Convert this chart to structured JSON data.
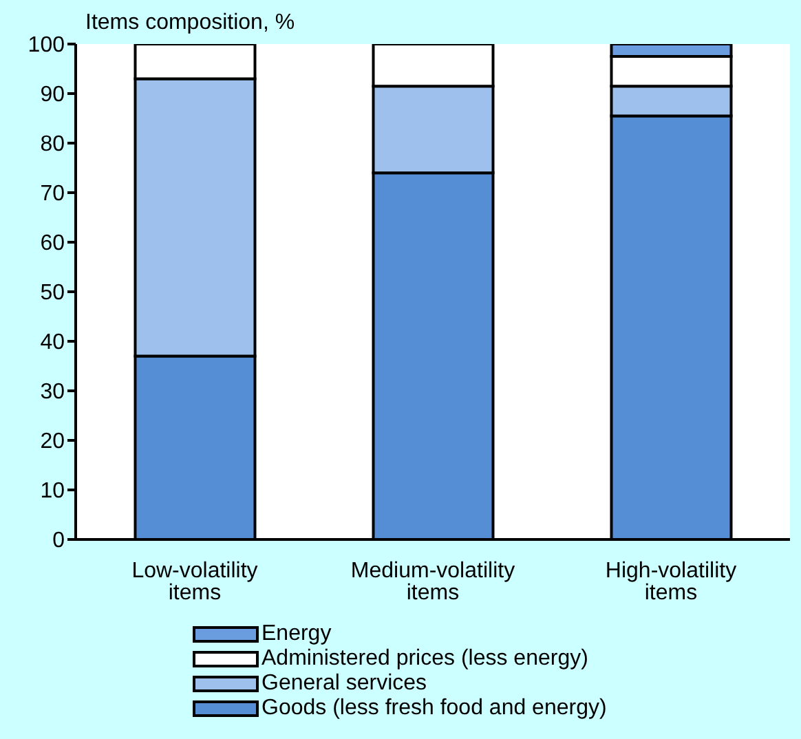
{
  "chart_data": {
    "type": "bar",
    "stacked": true,
    "ylabel": "Items composition, %",
    "categories": [
      "Low-volatility items",
      "Medium-volatility items",
      "High-volatility items"
    ],
    "series": [
      {
        "name": "Goods (less fresh food and energy)",
        "color": "#558ed5",
        "values": [
          37,
          74,
          85.5
        ]
      },
      {
        "name": "General services",
        "color": "#9dc0ec",
        "values": [
          56,
          17.5,
          6
        ]
      },
      {
        "name": "Administered prices (less energy)",
        "color": "#ffffff",
        "values": [
          7,
          8.5,
          6
        ]
      },
      {
        "name": "Energy",
        "color": "#6a9ddf",
        "values": [
          null,
          null,
          2.5
        ]
      }
    ],
    "ylim": [
      0,
      100
    ],
    "yticks": [
      0,
      10,
      20,
      30,
      40,
      50,
      60,
      70,
      80,
      90,
      100
    ],
    "grid": false,
    "legend": "bottom"
  }
}
